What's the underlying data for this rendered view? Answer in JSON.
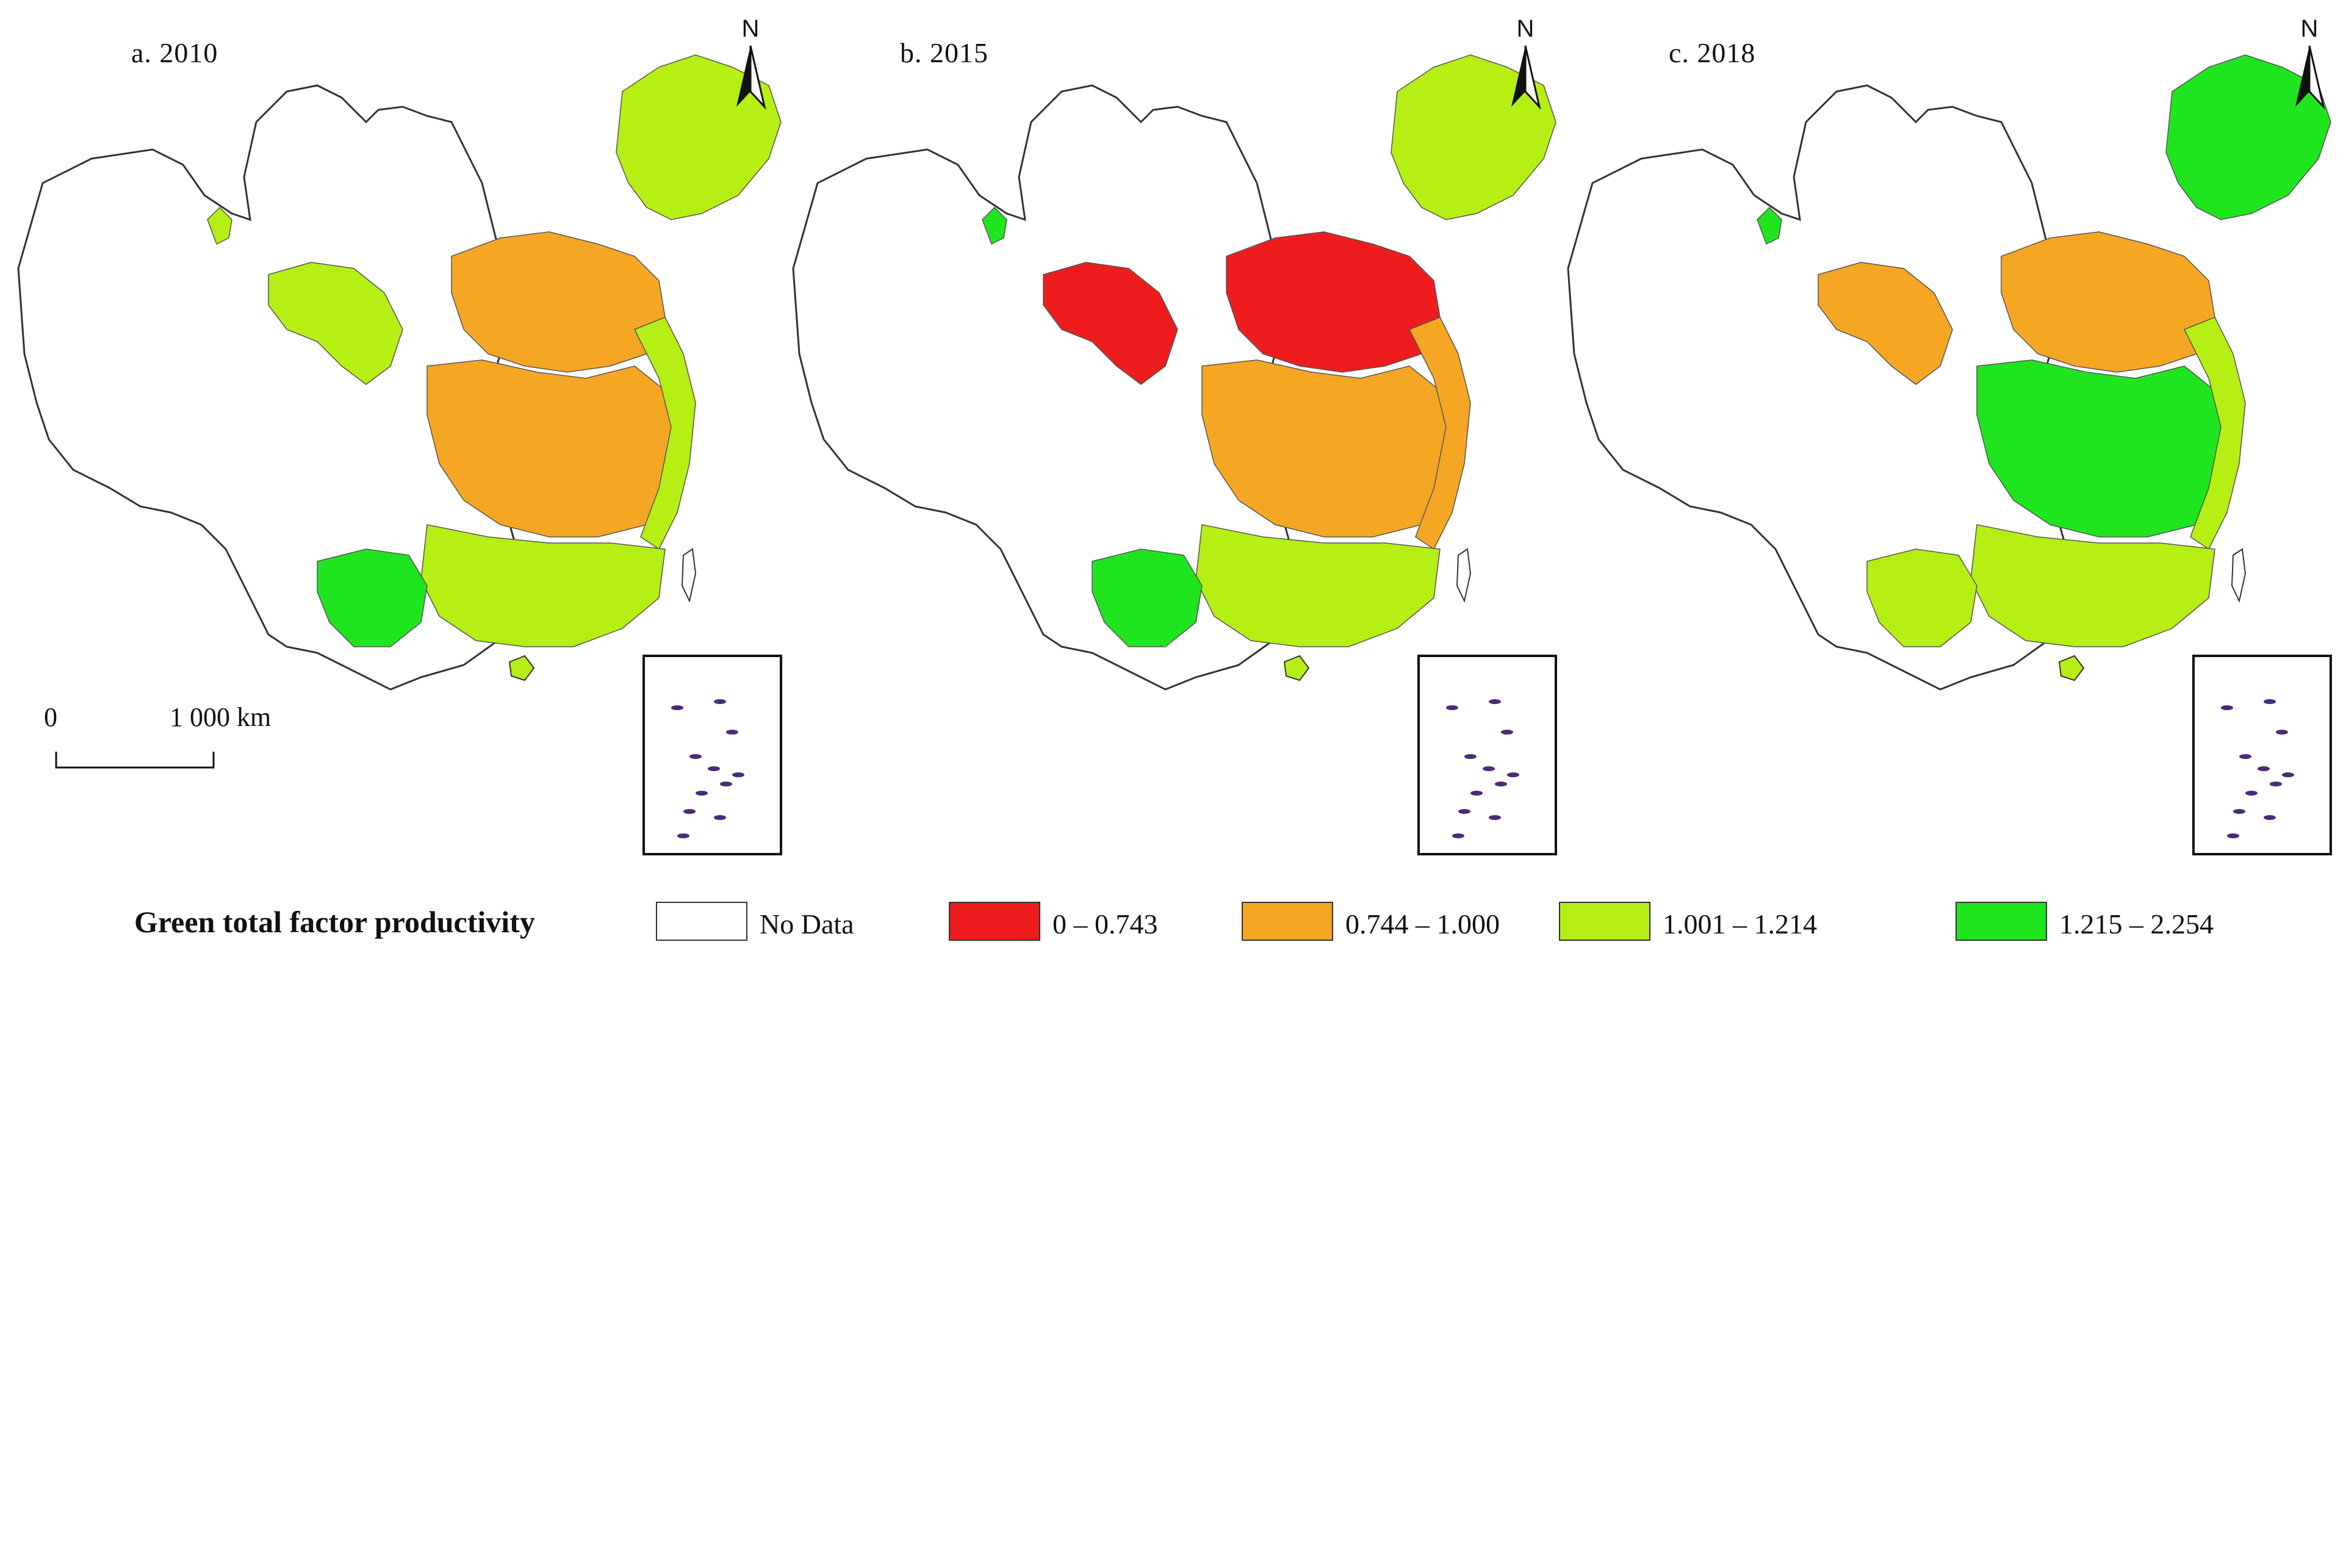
{
  "panels": [
    {
      "id": "a",
      "title": "a. 2010",
      "north_label": "N",
      "regions": {
        "northeast": "light_green",
        "north": "orange",
        "central": "orange",
        "south": "light_green",
        "southwest": "green",
        "northwest": "light_green",
        "xinjiang": "light_green",
        "east": "light_green"
      }
    },
    {
      "id": "b",
      "title": "b. 2015",
      "north_label": "N",
      "regions": {
        "northeast": "light_green",
        "north": "red",
        "central": "orange",
        "south": "light_green",
        "southwest": "green",
        "northwest": "red",
        "xinjiang": "green",
        "east": "orange"
      }
    },
    {
      "id": "c",
      "title": "c. 2018",
      "north_label": "N",
      "regions": {
        "northeast": "green",
        "north": "orange",
        "central": "green",
        "south": "light_green",
        "southwest": "light_green",
        "northwest": "orange",
        "xinjiang": "green",
        "east": "light_green"
      }
    }
  ],
  "scale_bar": {
    "zero_label": "0",
    "distance_label": "1 000 km"
  },
  "legend": {
    "title": "Green total factor productivity",
    "items": [
      {
        "label": "No Data",
        "color": "#ffffff"
      },
      {
        "label": "0 – 0.743",
        "color": "#ee1c1c"
      },
      {
        "label": "0.744 – 1.000",
        "color": "#f5a623"
      },
      {
        "label": "1.001 – 1.214",
        "color": "#b5ef13"
      },
      {
        "label": "1.215 – 2.254",
        "color": "#1fe51f"
      }
    ]
  },
  "colors": {
    "red": "#ee1c1c",
    "orange": "#f5a623",
    "light_green": "#b5ef13",
    "green": "#1fe51f",
    "outline": "#333333",
    "island": "#4b2a7a"
  }
}
